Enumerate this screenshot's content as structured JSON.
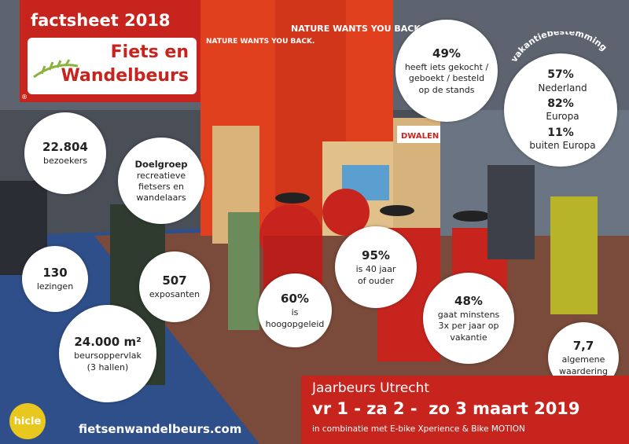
{
  "header": {
    "title": "factsheet 2018",
    "logo_line1": "Fiets en",
    "logo_line2": "Wandelbeurs",
    "logo_mark": "®"
  },
  "stats": [
    {
      "lines": [
        "22.804",
        "bezoekers"
      ]
    },
    {
      "lines": [
        "Doelgroep",
        "recreatieve",
        "fietsers en",
        "wandelaars"
      ]
    },
    {
      "lines": [
        "49%",
        "heeft iets gekocht /",
        "geboekt / besteld",
        "op de stands"
      ]
    },
    {
      "lines": [
        "130",
        "lezingen"
      ]
    },
    {
      "lines": [
        "507",
        "exposanten"
      ]
    },
    {
      "lines": [
        "24.000 m²",
        "beursoppervlak",
        "(3 hallen)"
      ]
    },
    {
      "lines": [
        "60%",
        "is",
        "hoogopgeleid"
      ]
    },
    {
      "lines": [
        "95%",
        "is 40 jaar",
        "of ouder"
      ]
    },
    {
      "lines": [
        "48%",
        "gaat minstens",
        "3x per jaar op",
        "vakantie"
      ]
    },
    {
      "lines": [
        "7,7",
        "algemene",
        "waardering"
      ]
    }
  ],
  "destination": {
    "title": "vakantiebestemming",
    "rows": [
      {
        "pct": "57%",
        "label": "Nederland"
      },
      {
        "pct": "82%",
        "label": "Europa"
      },
      {
        "pct": "11%",
        "label": "buiten Europa"
      }
    ]
  },
  "footer": {
    "venue": "Jaarbeurs Utrecht",
    "dates": "vr 1 - za 2 -  zo 3 maart 2019",
    "combo": "in combinatie met E-bike Xperience & Bike MOTION",
    "url": "fietsenwandelbeurs.com",
    "partner": "hicle"
  },
  "photo_signs": {
    "sign1": "NATURE WANTS YOU BACK.",
    "sign2": "NATURE WANTS YOU BACK.",
    "sign3": "DWALEN"
  }
}
